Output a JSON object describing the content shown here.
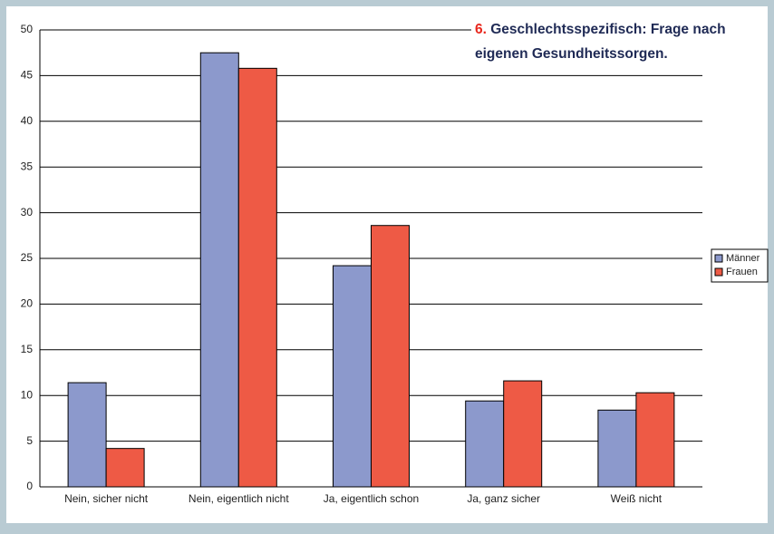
{
  "chart_data": {
    "type": "bar",
    "title_number": "6.",
    "title_lines": [
      "Geschlechtsspezifisch: Frage nach",
      "eigenen Gesundheitssorgen."
    ],
    "categories": [
      "Nein, sicher nicht",
      "Nein, eigentlich nicht",
      "Ja, eigentlich schon",
      "Ja, ganz sicher",
      "Weiß nicht"
    ],
    "series": [
      {
        "name": "Männer",
        "color": "#8c99cc",
        "values": [
          11.4,
          47.5,
          24.2,
          9.4,
          8.4
        ]
      },
      {
        "name": "Frauen",
        "color": "#ee5a45",
        "values": [
          4.2,
          45.8,
          28.6,
          11.6,
          10.3
        ]
      }
    ],
    "ylim": [
      0,
      50
    ],
    "yticks": [
      0,
      5,
      10,
      15,
      20,
      25,
      30,
      35,
      40,
      45,
      50
    ],
    "grid": true,
    "legend": "right"
  }
}
